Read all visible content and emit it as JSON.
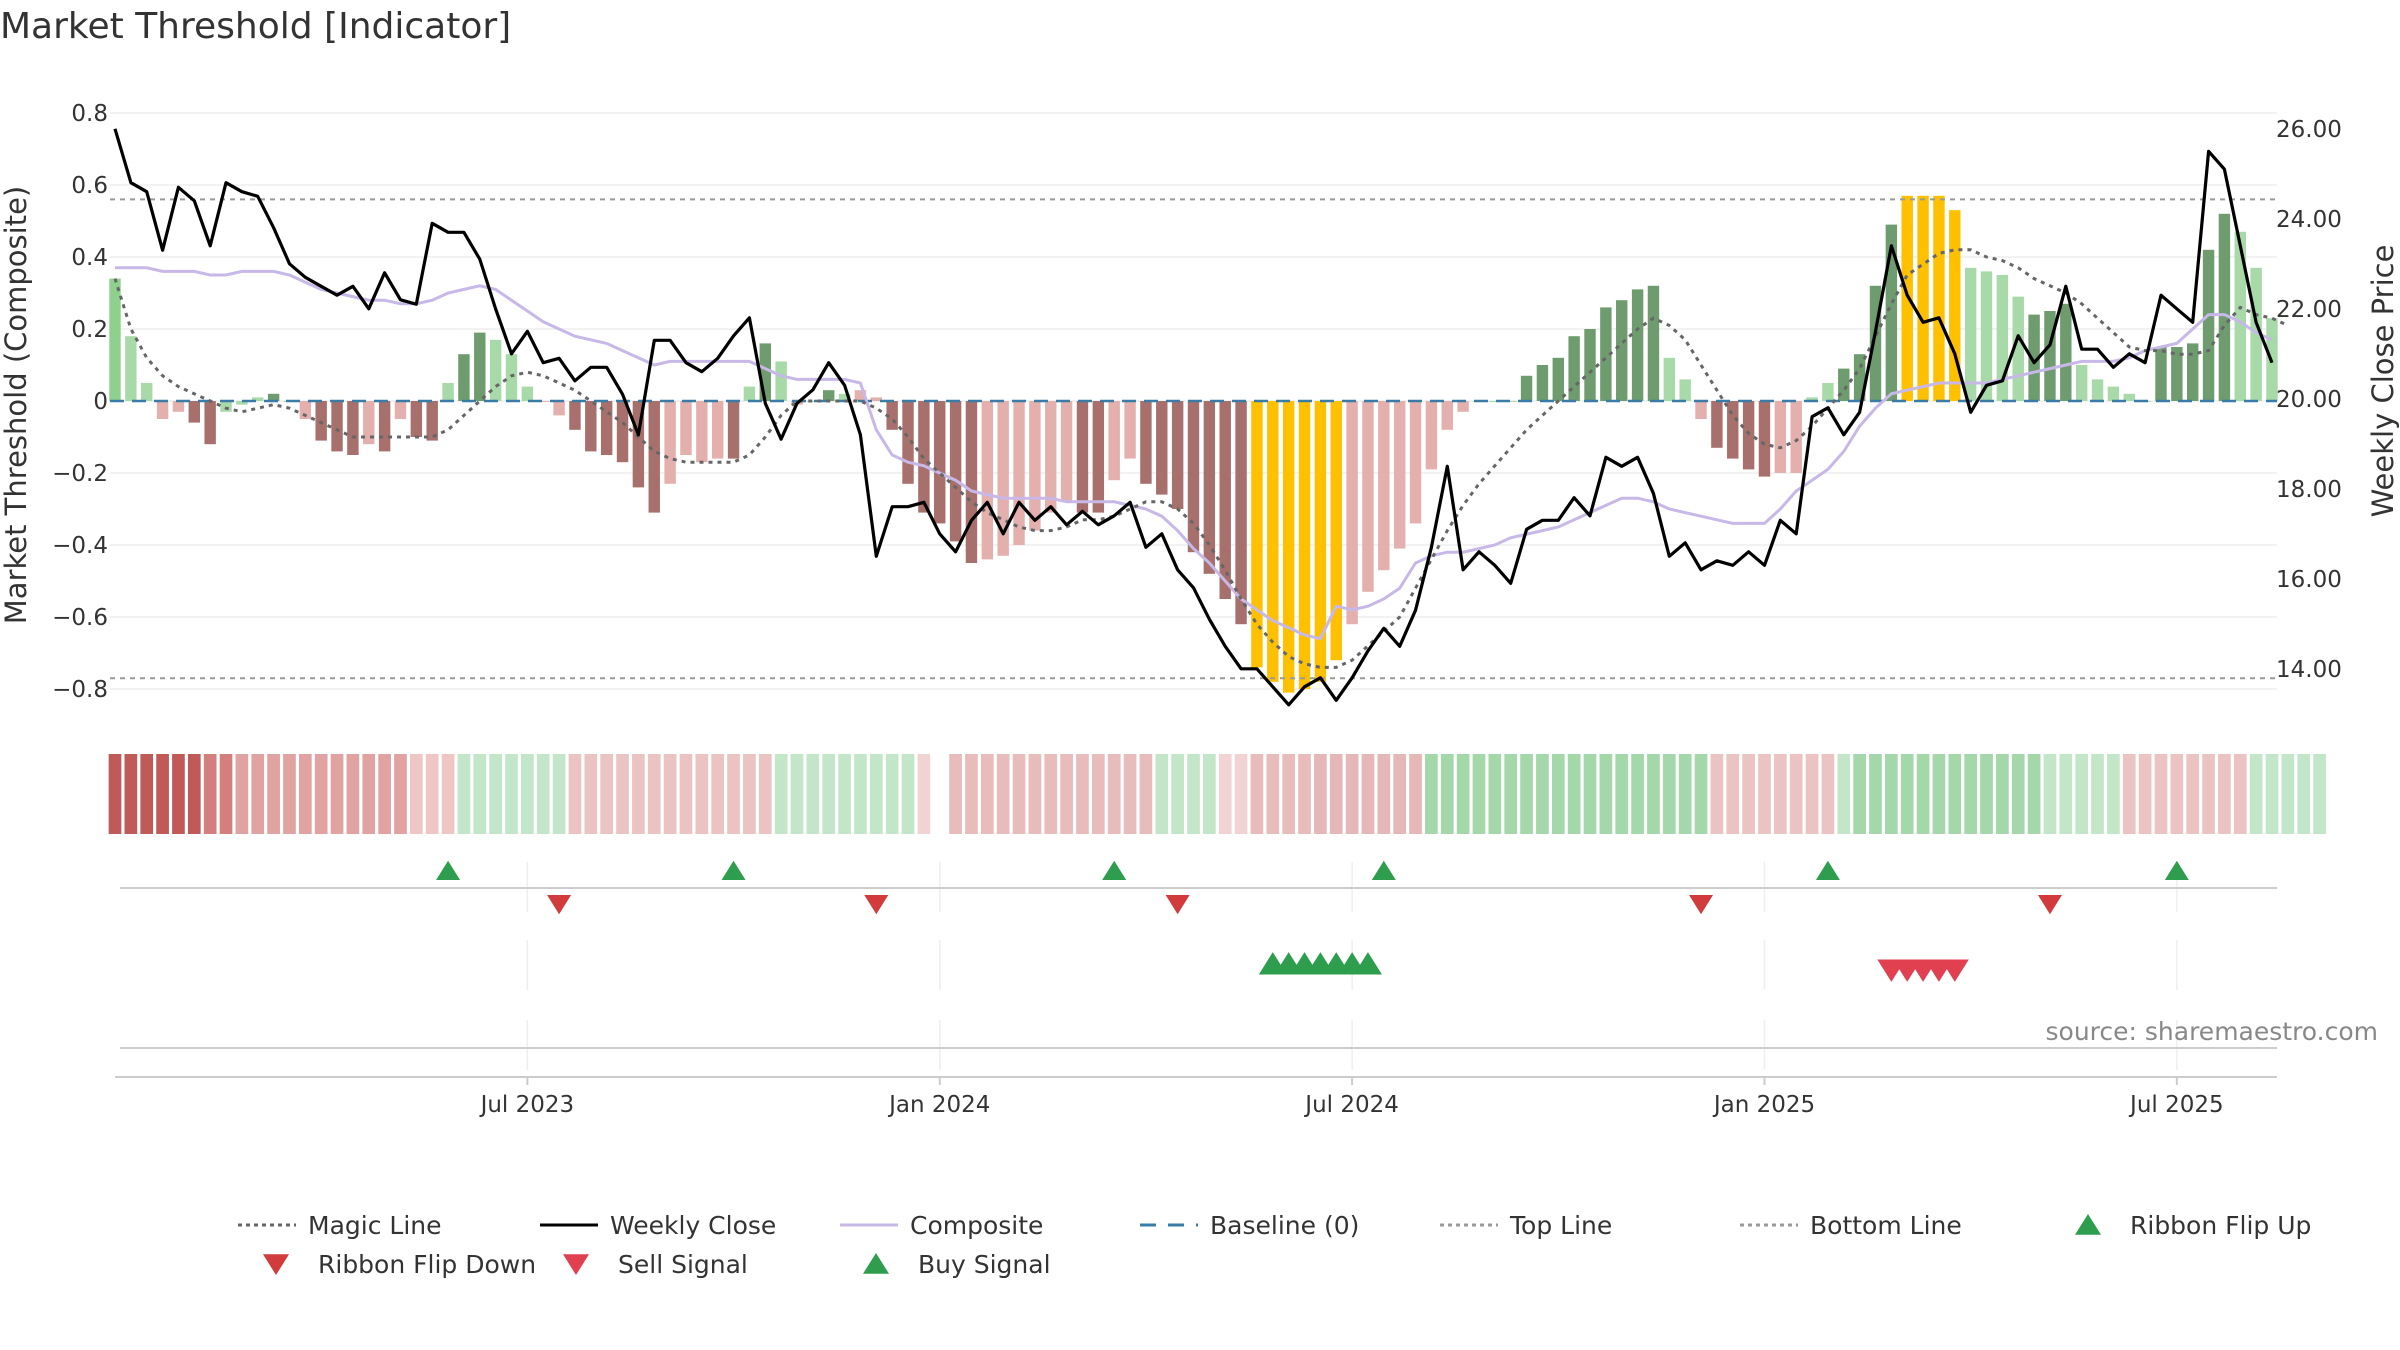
{
  "chart_data": {
    "type": "bar",
    "title": "Market Threshold [Indicator]",
    "ylabel": "Market Threshold (Composite)",
    "y2label": "Weekly Close Price",
    "source": "source: sharemaestro.com",
    "ylim": [
      -0.9,
      0.85
    ],
    "y2lim": [
      12.75,
      26.75
    ],
    "y_ticks": [
      {
        "v": 0.8,
        "label": "0.8"
      },
      {
        "v": 0.6,
        "label": "0.6"
      },
      {
        "v": 0.4,
        "label": "0.4"
      },
      {
        "v": 0.2,
        "label": "0.2"
      },
      {
        "v": 0,
        "label": "0"
      },
      {
        "v": -0.2,
        "label": "−0.2"
      },
      {
        "v": -0.4,
        "label": "−0.4"
      },
      {
        "v": -0.6,
        "label": "−0.6"
      },
      {
        "v": -0.8,
        "label": "−0.8"
      }
    ],
    "y2_ticks": [
      {
        "v": 26,
        "label": "26.00"
      },
      {
        "v": 24,
        "label": "24.00"
      },
      {
        "v": 22,
        "label": "22.00"
      },
      {
        "v": 20,
        "label": "20.00"
      },
      {
        "v": 18,
        "label": "18.00"
      },
      {
        "v": 16,
        "label": "16.00"
      },
      {
        "v": 14,
        "label": "14.00"
      }
    ],
    "x_ticks": [
      {
        "week": 26,
        "label": "Jul 2023"
      },
      {
        "week": 52,
        "label": "Jan 2024"
      },
      {
        "week": 78,
        "label": "Jul 2024"
      },
      {
        "week": 104,
        "label": "Jan 2025"
      },
      {
        "week": 130,
        "label": "Jul 2025"
      }
    ],
    "top_line": 0.56,
    "bottom_line": -0.77,
    "composite": [
      0.34,
      0.18,
      0.05,
      -0.05,
      -0.03,
      -0.06,
      -0.12,
      -0.03,
      -0.01,
      0.01,
      0.02,
      0,
      -0.05,
      -0.11,
      -0.14,
      -0.15,
      -0.12,
      -0.14,
      -0.05,
      -0.1,
      -0.11,
      0.05,
      0.13,
      0.19,
      0.17,
      0.13,
      0.04,
      0,
      -0.04,
      -0.08,
      -0.14,
      -0.15,
      -0.17,
      -0.24,
      -0.31,
      -0.23,
      -0.15,
      -0.17,
      -0.16,
      -0.16,
      0.04,
      0.16,
      0.11,
      -0.01,
      0,
      0.03,
      0.02,
      0.03,
      0.01,
      -0.08,
      -0.23,
      -0.31,
      -0.34,
      -0.39,
      -0.45,
      -0.44,
      -0.43,
      -0.4,
      -0.36,
      -0.31,
      -0.28,
      -0.31,
      -0.31,
      -0.22,
      -0.16,
      -0.23,
      -0.26,
      -0.3,
      -0.42,
      -0.48,
      -0.55,
      -0.62,
      -0.74,
      -0.78,
      -0.81,
      -0.8,
      -0.78,
      -0.72,
      -0.62,
      -0.53,
      -0.47,
      -0.41,
      -0.34,
      -0.19,
      -0.08,
      -0.03,
      0,
      0,
      0,
      0.07,
      0.1,
      0.12,
      0.18,
      0.2,
      0.26,
      0.28,
      0.31,
      0.32,
      0.12,
      0.06,
      -0.05,
      -0.13,
      -0.16,
      -0.19,
      -0.21,
      -0.2,
      -0.2,
      0.01,
      0.05,
      0.09,
      0.13,
      0.32,
      0.49,
      0.57,
      0.57,
      0.57,
      0.53,
      0.37,
      0.36,
      0.35,
      0.29,
      0.24,
      0.25,
      0.27,
      0.1,
      0.06,
      0.04,
      0.02,
      0,
      0.15,
      0.15,
      0.16,
      0.42,
      0.52,
      0.47,
      0.37,
      0.23
    ],
    "bar_colors": [
      "#8fd08f",
      "#a8d9a8",
      "#a8d9a8",
      "#e3b0ae",
      "#e3b0ae",
      "#a8706c",
      "#a8706c",
      "#a8d9a8",
      "#a8d9a8",
      "#a8d9a8",
      "#6f9c6f",
      "#a8d9a8",
      "#e3b0ae",
      "#a8706c",
      "#a8706c",
      "#a8706c",
      "#e3b0ae",
      "#a8706c",
      "#e3b0ae",
      "#a8706c",
      "#a8706c",
      "#a8d9a8",
      "#6f9c6f",
      "#6f9c6f",
      "#a8d9a8",
      "#a8d9a8",
      "#a8d9a8",
      "#e3b0ae",
      "#e3b0ae",
      "#a8706c",
      "#a8706c",
      "#a8706c",
      "#a8706c",
      "#a8706c",
      "#a8706c",
      "#e3b0ae",
      "#e3b0ae",
      "#e3b0ae",
      "#e3b0ae",
      "#a8706c",
      "#a8d9a8",
      "#6f9c6f",
      "#a8d9a8",
      "#e3b0ae",
      "#a8d9a8",
      "#6f9c6f",
      "#a8d9a8",
      "#e3b0ae",
      "#e3b0ae",
      "#a8706c",
      "#a8706c",
      "#a8706c",
      "#a8706c",
      "#a8706c",
      "#a8706c",
      "#e3b0ae",
      "#e3b0ae",
      "#e3b0ae",
      "#e3b0ae",
      "#e3b0ae",
      "#e3b0ae",
      "#a8706c",
      "#a8706c",
      "#e3b0ae",
      "#e3b0ae",
      "#a8706c",
      "#a8706c",
      "#a8706c",
      "#a8706c",
      "#a8706c",
      "#a8706c",
      "#a8706c",
      "#ffc000",
      "#ffc000",
      "#ffc000",
      "#ffc000",
      "#ffc000",
      "#ffc000",
      "#e3b0ae",
      "#e3b0ae",
      "#e3b0ae",
      "#e3b0ae",
      "#e3b0ae",
      "#e3b0ae",
      "#e3b0ae",
      "#e3b0ae",
      "#a8d9a8",
      "#a8d9a8",
      "#a8d9a8",
      "#6f9c6f",
      "#6f9c6f",
      "#6f9c6f",
      "#6f9c6f",
      "#6f9c6f",
      "#6f9c6f",
      "#6f9c6f",
      "#6f9c6f",
      "#6f9c6f",
      "#a8d9a8",
      "#a8d9a8",
      "#e3b0ae",
      "#a8706c",
      "#a8706c",
      "#a8706c",
      "#a8706c",
      "#e3b0ae",
      "#e3b0ae",
      "#a8d9a8",
      "#a8d9a8",
      "#6f9c6f",
      "#6f9c6f",
      "#6f9c6f",
      "#6f9c6f",
      "#ffc000",
      "#ffc000",
      "#ffc000",
      "#ffc000",
      "#a8d9a8",
      "#a8d9a8",
      "#a8d9a8",
      "#a8d9a8",
      "#6f9c6f",
      "#6f9c6f",
      "#6f9c6f",
      "#a8d9a8",
      "#a8d9a8",
      "#a8d9a8",
      "#a8d9a8",
      "#a8d9a8",
      "#6f9c6f",
      "#6f9c6f",
      "#6f9c6f",
      "#6f9c6f",
      "#6f9c6f",
      "#a8d9a8",
      "#a8d9a8",
      "#a8d9a8"
    ],
    "weekly_close": [
      26.0,
      24.8,
      24.6,
      23.3,
      24.7,
      24.4,
      23.4,
      24.8,
      24.6,
      24.5,
      23.8,
      23.0,
      22.7,
      22.5,
      22.3,
      22.5,
      22.0,
      22.8,
      22.2,
      22.1,
      23.9,
      23.7,
      23.7,
      23.1,
      22.0,
      21.0,
      21.5,
      20.8,
      20.9,
      20.4,
      20.7,
      20.7,
      20.1,
      19.2,
      21.3,
      21.3,
      20.8,
      20.6,
      20.9,
      21.4,
      21.8,
      19.9,
      19.1,
      19.9,
      20.2,
      20.8,
      20.3,
      19.2,
      16.5,
      17.6,
      17.6,
      17.7,
      17.0,
      16.6,
      17.3,
      17.7,
      17.0,
      17.7,
      17.3,
      17.6,
      17.2,
      17.5,
      17.2,
      17.4,
      17.7,
      16.7,
      17.0,
      16.2,
      15.8,
      15.1,
      14.5,
      14.0,
      14.0,
      13.6,
      13.2,
      13.6,
      13.8,
      13.3,
      13.8,
      14.4,
      14.9,
      14.5,
      15.3,
      16.7,
      18.5,
      16.2,
      16.6,
      16.3,
      15.9,
      17.1,
      17.3,
      17.3,
      17.8,
      17.4,
      18.7,
      18.5,
      18.7,
      17.9,
      16.5,
      16.8,
      16.2,
      16.4,
      16.3,
      16.6,
      16.3,
      17.3,
      17.0,
      19.6,
      19.8,
      19.2,
      19.7,
      21.5,
      23.4,
      22.3,
      21.7,
      21.8,
      21.0,
      19.7,
      20.3,
      20.4,
      21.4,
      20.8,
      21.2,
      22.5,
      21.1,
      21.1,
      20.7,
      21.0,
      20.8,
      22.3,
      22.0,
      21.7,
      25.5,
      25.1,
      23.4,
      21.7,
      20.8
    ],
    "composite_line": [
      0.37,
      0.37,
      0.37,
      0.36,
      0.36,
      0.36,
      0.35,
      0.35,
      0.36,
      0.36,
      0.36,
      0.35,
      0.33,
      0.31,
      0.3,
      0.29,
      0.28,
      0.28,
      0.27,
      0.27,
      0.28,
      0.3,
      0.31,
      0.32,
      0.31,
      0.28,
      0.25,
      0.22,
      0.2,
      0.18,
      0.17,
      0.16,
      0.14,
      0.12,
      0.1,
      0.11,
      0.11,
      0.11,
      0.11,
      0.11,
      0.11,
      0.09,
      0.07,
      0.06,
      0.06,
      0.06,
      0.06,
      0.05,
      -0.08,
      -0.15,
      -0.17,
      -0.18,
      -0.2,
      -0.22,
      -0.25,
      -0.26,
      -0.27,
      -0.27,
      -0.27,
      -0.27,
      -0.28,
      -0.28,
      -0.28,
      -0.28,
      -0.29,
      -0.3,
      -0.32,
      -0.36,
      -0.41,
      -0.45,
      -0.5,
      -0.55,
      -0.58,
      -0.61,
      -0.63,
      -0.65,
      -0.66,
      -0.57,
      -0.58,
      -0.57,
      -0.55,
      -0.52,
      -0.45,
      -0.43,
      -0.42,
      -0.42,
      -0.41,
      -0.4,
      -0.38,
      -0.37,
      -0.36,
      -0.35,
      -0.33,
      -0.31,
      -0.29,
      -0.27,
      -0.27,
      -0.28,
      -0.3,
      -0.31,
      -0.32,
      -0.33,
      -0.34,
      -0.34,
      -0.34,
      -0.3,
      -0.25,
      -0.22,
      -0.19,
      -0.14,
      -0.07,
      -0.02,
      0.02,
      0.03,
      0.04,
      0.05,
      0.05,
      0.05,
      0.05,
      0.06,
      0.07,
      0.08,
      0.09,
      0.1,
      0.11,
      0.11,
      0.11,
      0.12,
      0.14,
      0.15,
      0.16,
      0.2,
      0.24,
      0.24,
      0.22,
      0.19,
      0.17
    ],
    "magic_line": [
      0.34,
      0.2,
      0.12,
      0.07,
      0.04,
      0.02,
      0.0,
      -0.02,
      -0.03,
      -0.02,
      -0.01,
      -0.02,
      -0.04,
      -0.06,
      -0.08,
      -0.1,
      -0.1,
      -0.1,
      -0.1,
      -0.1,
      -0.1,
      -0.08,
      -0.04,
      0.0,
      0.04,
      0.07,
      0.08,
      0.07,
      0.05,
      0.03,
      0.0,
      -0.03,
      -0.06,
      -0.1,
      -0.14,
      -0.16,
      -0.17,
      -0.17,
      -0.17,
      -0.17,
      -0.15,
      -0.1,
      -0.04,
      0.0,
      0.0,
      0.0,
      0.0,
      0.0,
      -0.02,
      -0.05,
      -0.1,
      -0.16,
      -0.2,
      -0.24,
      -0.28,
      -0.31,
      -0.33,
      -0.35,
      -0.36,
      -0.36,
      -0.35,
      -0.33,
      -0.33,
      -0.32,
      -0.3,
      -0.28,
      -0.28,
      -0.3,
      -0.34,
      -0.4,
      -0.47,
      -0.55,
      -0.62,
      -0.67,
      -0.71,
      -0.73,
      -0.74,
      -0.74,
      -0.72,
      -0.68,
      -0.64,
      -0.6,
      -0.52,
      -0.44,
      -0.36,
      -0.29,
      -0.23,
      -0.18,
      -0.13,
      -0.08,
      -0.04,
      0.0,
      0.04,
      0.08,
      0.12,
      0.16,
      0.2,
      0.23,
      0.21,
      0.17,
      0.1,
      0.03,
      -0.04,
      -0.09,
      -0.12,
      -0.13,
      -0.11,
      -0.07,
      -0.02,
      0.03,
      0.09,
      0.18,
      0.27,
      0.35,
      0.38,
      0.41,
      0.42,
      0.42,
      0.4,
      0.39,
      0.37,
      0.34,
      0.32,
      0.3,
      0.27,
      0.23,
      0.19,
      0.15,
      0.14,
      0.14,
      0.13,
      0.13,
      0.14,
      0.21,
      0.26,
      0.24,
      0.23,
      0.21
    ],
    "ribbon_colors": [
      "#c05a58",
      "#c05a58",
      "#c05a58",
      "#c05a58",
      "#c05a58",
      "#c05a58",
      "#d27f7d",
      "#d27f7d",
      "#e0a3a1",
      "#e0a3a1",
      "#e0a3a1",
      "#e0a3a1",
      "#e0a3a1",
      "#e0a3a1",
      "#e0a3a1",
      "#e0a3a1",
      "#e0a3a1",
      "#e0a3a1",
      "#e0a3a1",
      "#eec6c4",
      "#eec6c4",
      "#eec6c4",
      "#c3e6c8",
      "#c3e6c8",
      "#c3e6c8",
      "#c3e6c8",
      "#c3e6c8",
      "#c3e6c8",
      "#c3e6c8",
      "#ebc3c2",
      "#ebc3c2",
      "#ebc3c2",
      "#ebc3c2",
      "#ebc3c2",
      "#ebc3c2",
      "#ebc3c2",
      "#ebc3c2",
      "#ebc3c2",
      "#ebc3c2",
      "#ebc3c2",
      "#ebc3c2",
      "#ebc3c2",
      "#c3e6c8",
      "#c3e6c8",
      "#c3e6c8",
      "#c3e6c8",
      "#c3e6c8",
      "#c3e6c8",
      "#c3e6c8",
      "#c3e6c8",
      "#c3e6c8",
      "#f0d3d2",
      null,
      "#e8bcbb",
      "#e8bcbb",
      "#e8bcbb",
      "#e8bcbb",
      "#e8bcbb",
      "#e8bcbb",
      "#e8bcbb",
      "#e8bcbb",
      "#e8bcbb",
      "#e8bcbb",
      "#e8bcbb",
      "#e8bcbb",
      "#e8bcbb",
      "#c3e6c8",
      "#c3e6c8",
      "#c3e6c8",
      "#c3e6c8",
      "#f0d3d2",
      "#f0d3d2",
      "#e8bcbb",
      "#e8bcbb",
      "#e8bcbb",
      "#e8bcbb",
      "#e5b7b6",
      "#e5b7b6",
      "#e5b7b6",
      "#e5b7b6",
      "#e5b7b6",
      "#e5b7b6",
      "#e5b7b6",
      "#a4d7a9",
      "#a4d7a9",
      "#a4d7a9",
      "#a4d7a9",
      "#a4d7a9",
      "#a4d7a9",
      "#a4d7a9",
      "#a4d7a9",
      "#a4d7a9",
      "#a4d7a9",
      "#a4d7a9",
      "#a4d7a9",
      "#a4d7a9",
      "#a4d7a9",
      "#a4d7a9",
      "#a4d7a9",
      "#a4d7a9",
      "#a4d7a9",
      "#ebc3c2",
      "#ebc3c2",
      "#ebc3c2",
      "#ebc3c2",
      "#ebc3c2",
      "#ebc3c2",
      "#ebc3c2",
      "#ebc3c2",
      "#c3e6c8",
      "#a4d7a9",
      "#a4d7a9",
      "#a4d7a9",
      "#a4d7a9",
      "#a4d7a9",
      "#a4d7a9",
      "#a4d7a9",
      "#a4d7a9",
      "#a4d7a9",
      "#a4d7a9",
      "#a4d7a9",
      "#a4d7a9",
      "#c3e6c8",
      "#c3e6c8",
      "#c3e6c8",
      "#c3e6c8",
      "#c3e6c8",
      "#ebc3c2",
      "#ebc3c2",
      "#ebc3c2",
      "#ebc3c2",
      "#ebc3c2",
      "#ebc3c2",
      "#ebc3c2",
      "#ebc3c2",
      "#c3e6c8",
      "#c3e6c8",
      "#c3e6c8",
      "#c3e6c8",
      "#c3e6c8"
    ],
    "ribbon_flip_up_weeks": [
      21,
      39,
      63,
      80,
      108,
      130
    ],
    "ribbon_flip_down_weeks": [
      28,
      48,
      67,
      100,
      122
    ],
    "buy_signal_weeks": [
      73,
      74,
      75,
      76,
      77,
      78,
      79
    ],
    "sell_signal_weeks": [
      112,
      113,
      114,
      115,
      116
    ]
  },
  "legend": [
    {
      "key": "magic",
      "label": "Magic Line",
      "style": "dotted",
      "color": "#666666"
    },
    {
      "key": "close",
      "label": "Weekly Close",
      "style": "solid",
      "color": "#000000"
    },
    {
      "key": "composite",
      "label": "Composite",
      "style": "solid",
      "color": "#c7b8e8"
    },
    {
      "key": "baseline",
      "label": "Baseline (0)",
      "style": "dashed",
      "color": "#3a7ca5"
    },
    {
      "key": "top",
      "label": "Top Line",
      "style": "dotted",
      "color": "#999999"
    },
    {
      "key": "bottom",
      "label": "Bottom Line",
      "style": "dotted",
      "color": "#999999"
    },
    {
      "key": "flipup",
      "label": "Ribbon Flip Up",
      "style": "tri-up",
      "color": "#2e9e4e"
    },
    {
      "key": "flipdown",
      "label": "Ribbon Flip Down",
      "style": "tri-down",
      "color": "#d13b3b"
    },
    {
      "key": "sell",
      "label": "Sell Signal",
      "style": "tri-down",
      "color": "#e04050"
    },
    {
      "key": "buy",
      "label": "Buy Signal",
      "style": "tri-up",
      "color": "#2e9e4e"
    }
  ]
}
